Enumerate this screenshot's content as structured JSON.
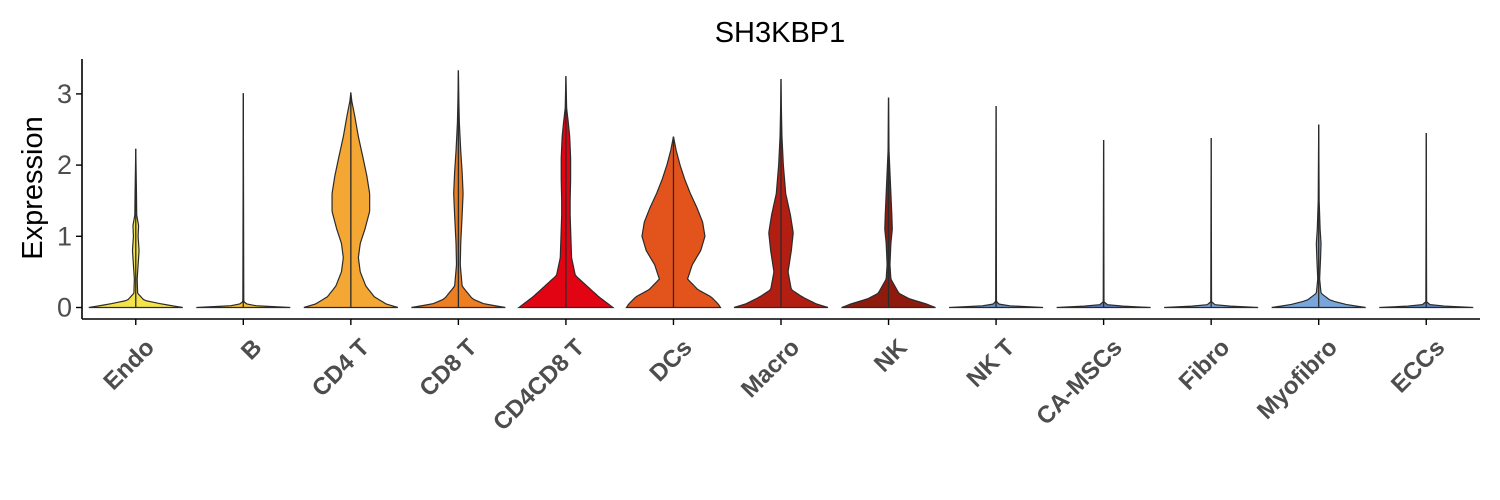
{
  "chart_data": {
    "type": "violin",
    "title": "SH3KBP1",
    "xlabel": "",
    "ylabel": "Expression",
    "ylim": [
      -0.15,
      3.45
    ],
    "yticks": [
      0,
      1,
      2,
      3
    ],
    "grid": false,
    "legend": "none",
    "categories": [
      "Endo",
      "B",
      "CD4 T",
      "CD8 T",
      "CD4CD8 T",
      "DCs",
      "Macro",
      "NK",
      "NK T",
      "CA-MSCs",
      "Fibro",
      "Myofibro",
      "ECCs"
    ],
    "colors": [
      "#F5E34A",
      "#F7C229",
      "#F5A733",
      "#EE7E22",
      "#E30413",
      "#E3541D",
      "#B31E12",
      "#8E1B0E",
      "#6B8FC4",
      "#5E7CC0",
      "#7EA3D3",
      "#78A6DA",
      "#5D86C0"
    ],
    "series": [
      {
        "category": "Endo",
        "max": 2.23,
        "density": [
          [
            0,
            1.0
          ],
          [
            0.05,
            0.55
          ],
          [
            0.1,
            0.18
          ],
          [
            0.2,
            0.04
          ],
          [
            0.4,
            0.03
          ],
          [
            0.6,
            0.05
          ],
          [
            0.8,
            0.07
          ],
          [
            1.0,
            0.05
          ],
          [
            1.15,
            0.06
          ],
          [
            1.3,
            0.02
          ],
          [
            1.6,
            0.015
          ],
          [
            2.23,
            0
          ]
        ]
      },
      {
        "category": "B",
        "max": 3.01,
        "density": [
          [
            0,
            1.0
          ],
          [
            0.03,
            0.12
          ],
          [
            0.08,
            0.01
          ],
          [
            3.01,
            0
          ]
        ]
      },
      {
        "category": "CD4 T",
        "max": 3.02,
        "density": [
          [
            0,
            1.0
          ],
          [
            0.05,
            0.75
          ],
          [
            0.15,
            0.5
          ],
          [
            0.3,
            0.32
          ],
          [
            0.5,
            0.2
          ],
          [
            0.7,
            0.16
          ],
          [
            0.9,
            0.2
          ],
          [
            1.1,
            0.3
          ],
          [
            1.35,
            0.4
          ],
          [
            1.6,
            0.4
          ],
          [
            1.85,
            0.34
          ],
          [
            2.1,
            0.26
          ],
          [
            2.4,
            0.16
          ],
          [
            2.7,
            0.08
          ],
          [
            2.9,
            0.02
          ],
          [
            3.02,
            0
          ]
        ]
      },
      {
        "category": "CD8 T",
        "max": 3.33,
        "density": [
          [
            0,
            1.0
          ],
          [
            0.05,
            0.55
          ],
          [
            0.12,
            0.3
          ],
          [
            0.3,
            0.08
          ],
          [
            0.6,
            0.04
          ],
          [
            0.9,
            0.05
          ],
          [
            1.3,
            0.08
          ],
          [
            1.6,
            0.1
          ],
          [
            1.9,
            0.08
          ],
          [
            2.2,
            0.05
          ],
          [
            2.6,
            0.02
          ],
          [
            2.9,
            0.01
          ],
          [
            3.33,
            0
          ]
        ]
      },
      {
        "category": "CD4CD8 T",
        "max": 3.25,
        "density": [
          [
            0,
            1.0
          ],
          [
            0.05,
            0.9
          ],
          [
            0.15,
            0.7
          ],
          [
            0.3,
            0.45
          ],
          [
            0.45,
            0.2
          ],
          [
            0.7,
            0.12
          ],
          [
            0.9,
            0.11
          ],
          [
            1.1,
            0.1
          ],
          [
            1.3,
            0.09
          ],
          [
            1.5,
            0.09
          ],
          [
            1.8,
            0.1
          ],
          [
            2.1,
            0.1
          ],
          [
            2.4,
            0.08
          ],
          [
            2.6,
            0.05
          ],
          [
            2.8,
            0.015
          ],
          [
            3.25,
            0
          ]
        ]
      },
      {
        "category": "DCs",
        "max": 2.4,
        "density": [
          [
            0,
            1.0
          ],
          [
            0.05,
            0.95
          ],
          [
            0.15,
            0.8
          ],
          [
            0.25,
            0.52
          ],
          [
            0.4,
            0.3
          ],
          [
            0.6,
            0.4
          ],
          [
            0.8,
            0.58
          ],
          [
            1.0,
            0.67
          ],
          [
            1.2,
            0.62
          ],
          [
            1.4,
            0.5
          ],
          [
            1.6,
            0.36
          ],
          [
            1.8,
            0.24
          ],
          [
            2.0,
            0.14
          ],
          [
            2.2,
            0.06
          ],
          [
            2.4,
            0
          ]
        ]
      },
      {
        "category": "Macro",
        "max": 3.21,
        "density": [
          [
            0,
            1.0
          ],
          [
            0.05,
            0.75
          ],
          [
            0.15,
            0.45
          ],
          [
            0.25,
            0.22
          ],
          [
            0.5,
            0.15
          ],
          [
            0.8,
            0.22
          ],
          [
            1.05,
            0.26
          ],
          [
            1.3,
            0.2
          ],
          [
            1.6,
            0.1
          ],
          [
            2.0,
            0.05
          ],
          [
            2.4,
            0.02
          ],
          [
            2.8,
            0.008
          ],
          [
            3.21,
            0
          ]
        ]
      },
      {
        "category": "NK",
        "max": 2.95,
        "density": [
          [
            0,
            1.0
          ],
          [
            0.05,
            0.8
          ],
          [
            0.12,
            0.45
          ],
          [
            0.2,
            0.22
          ],
          [
            0.4,
            0.05
          ],
          [
            0.6,
            0.03
          ],
          [
            0.9,
            0.05
          ],
          [
            1.1,
            0.08
          ],
          [
            1.3,
            0.07
          ],
          [
            1.6,
            0.05
          ],
          [
            1.9,
            0.03
          ],
          [
            2.2,
            0.01
          ],
          [
            2.95,
            0
          ]
        ]
      },
      {
        "category": "NK T",
        "max": 2.83,
        "density": [
          [
            0,
            1.0
          ],
          [
            0.03,
            0.1
          ],
          [
            0.08,
            0.008
          ],
          [
            2.83,
            0
          ]
        ]
      },
      {
        "category": "CA-MSCs",
        "max": 2.35,
        "density": [
          [
            0,
            1.0
          ],
          [
            0.03,
            0.1
          ],
          [
            0.08,
            0.008
          ],
          [
            2.35,
            0
          ]
        ]
      },
      {
        "category": "Fibro",
        "max": 2.38,
        "density": [
          [
            0,
            1.0
          ],
          [
            0.03,
            0.1
          ],
          [
            0.08,
            0.008
          ],
          [
            2.38,
            0
          ]
        ]
      },
      {
        "category": "Myofibro",
        "max": 2.57,
        "density": [
          [
            0,
            1.0
          ],
          [
            0.04,
            0.6
          ],
          [
            0.1,
            0.25
          ],
          [
            0.2,
            0.05
          ],
          [
            0.4,
            0.02
          ],
          [
            0.7,
            0.04
          ],
          [
            0.9,
            0.05
          ],
          [
            1.1,
            0.03
          ],
          [
            1.5,
            0.01
          ],
          [
            2.57,
            0
          ]
        ]
      },
      {
        "category": "ECCs",
        "max": 2.45,
        "density": [
          [
            0,
            1.0
          ],
          [
            0.03,
            0.1
          ],
          [
            0.08,
            0.008
          ],
          [
            2.45,
            0
          ]
        ]
      }
    ]
  }
}
